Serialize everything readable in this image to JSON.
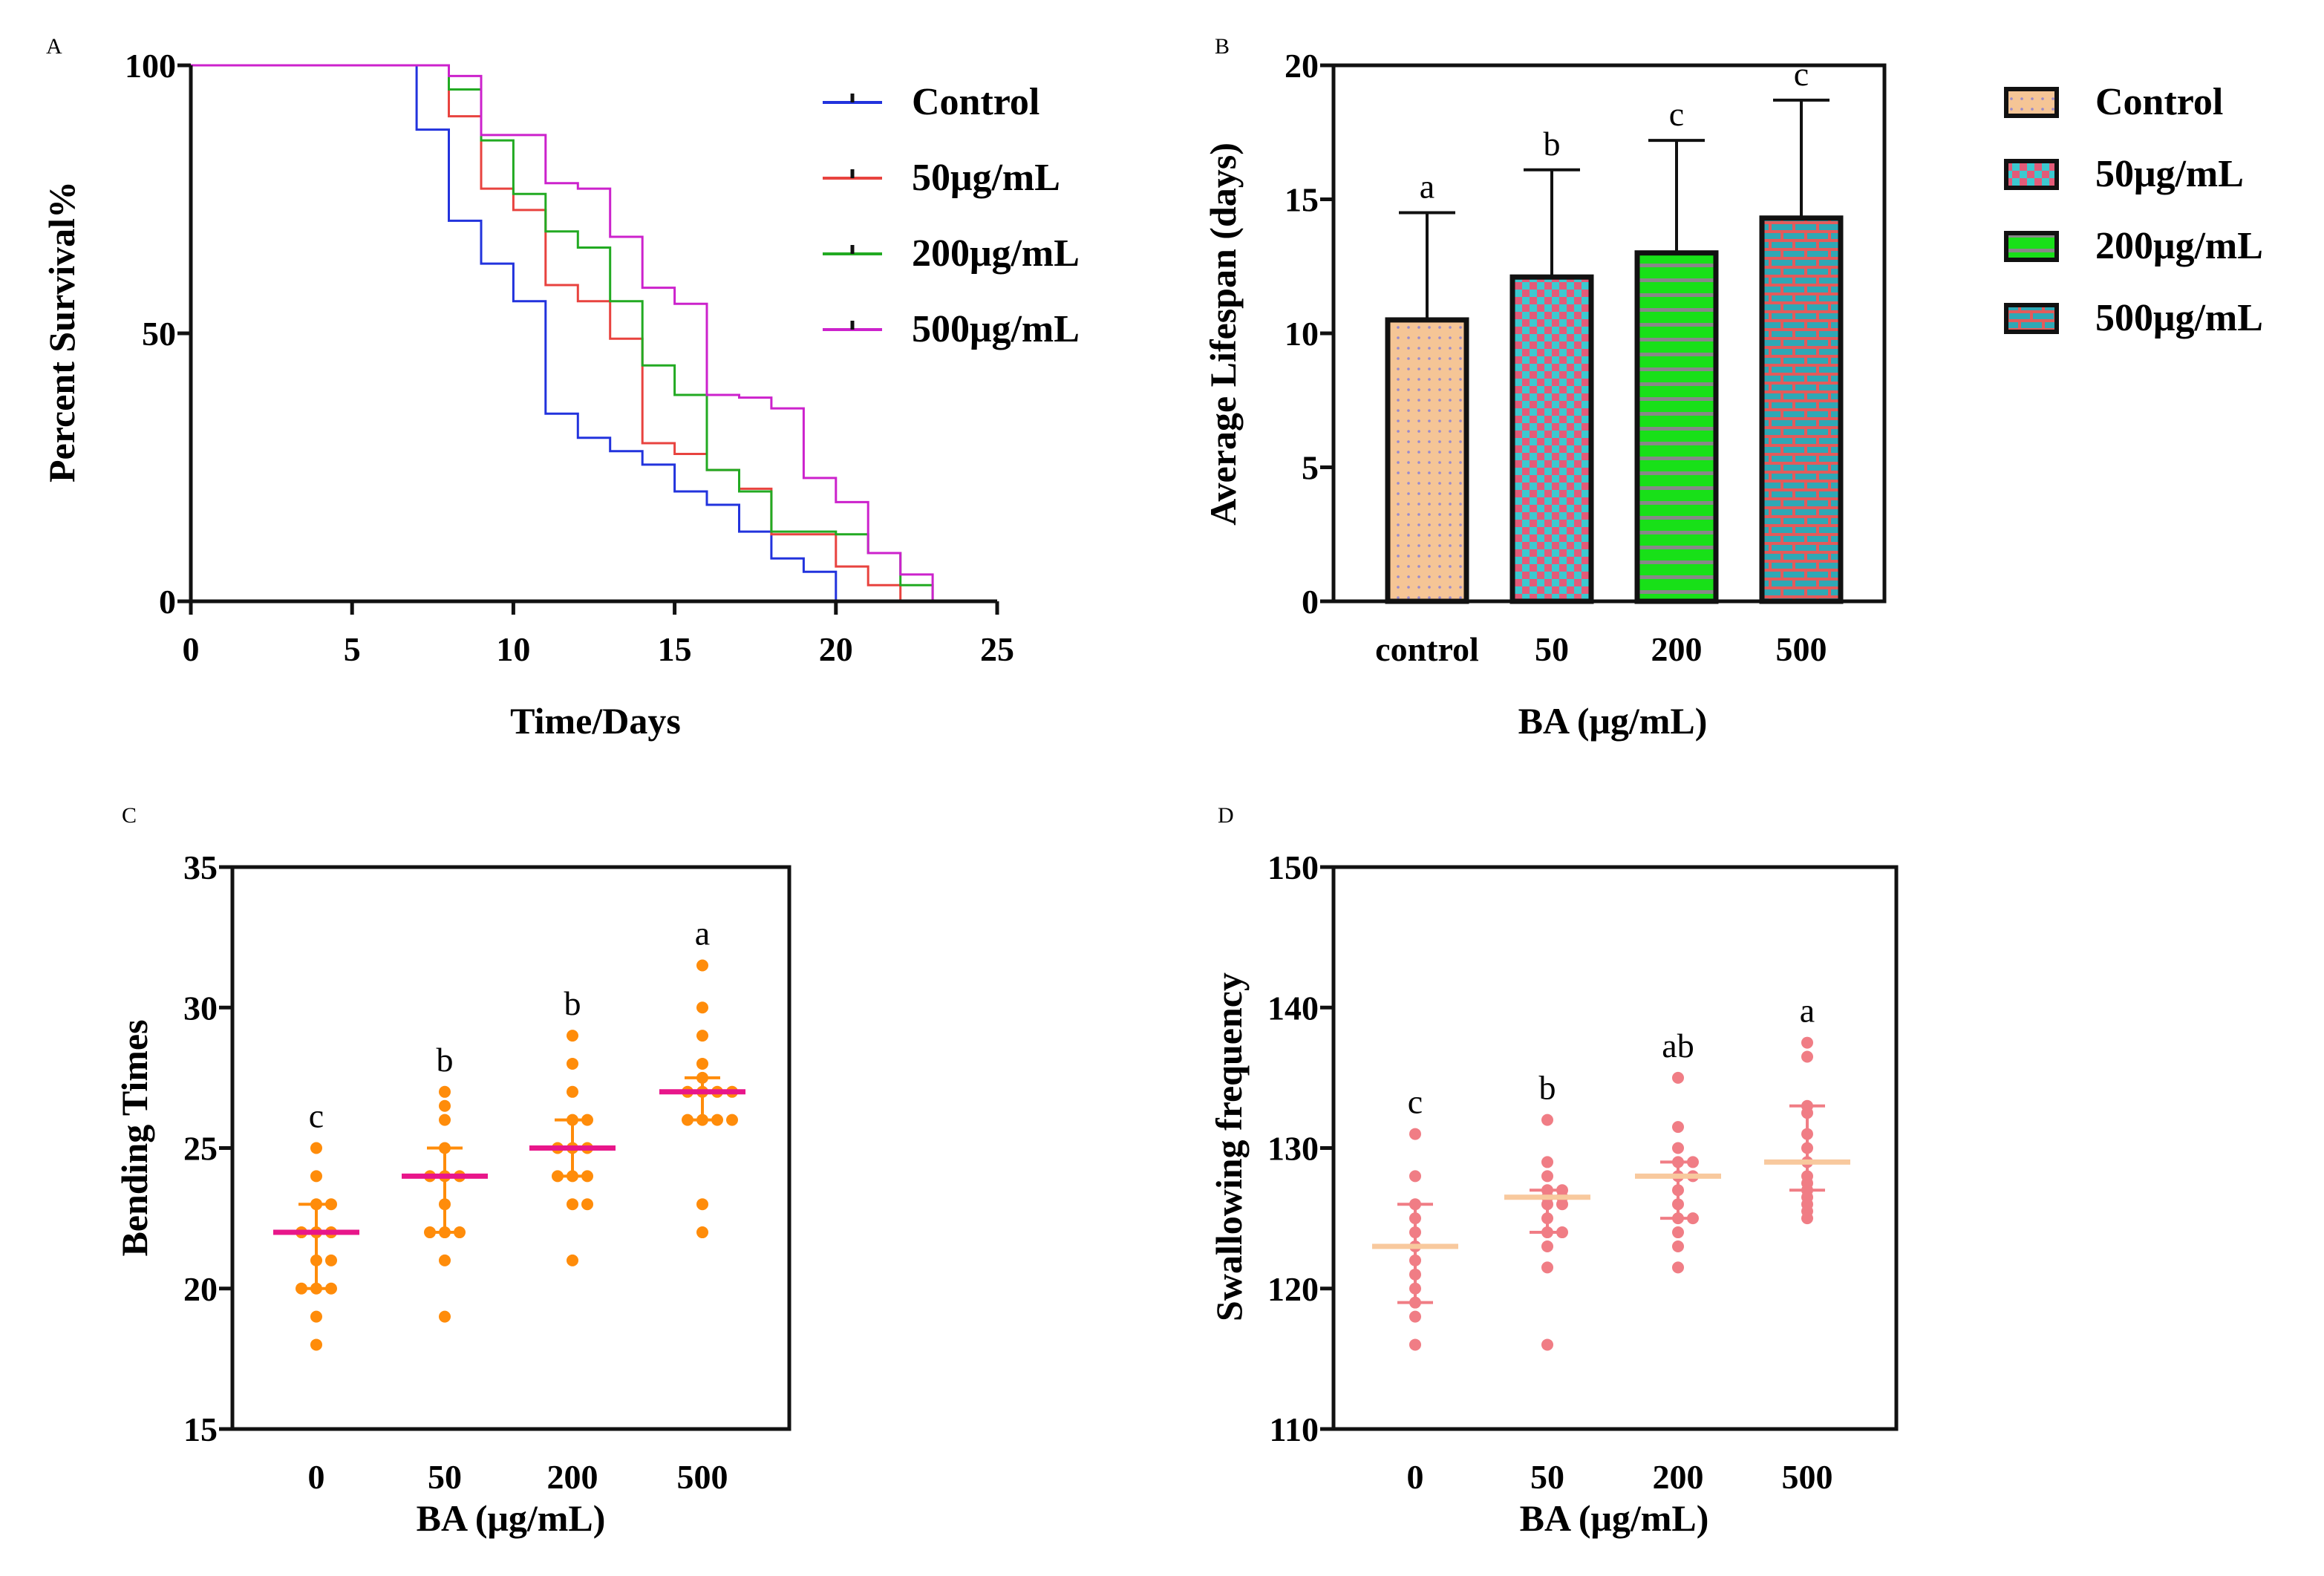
{
  "chart_data": [
    {
      "panel": "A",
      "type": "line",
      "subtype": "kaplan-meier-step",
      "title": "",
      "xlabel": "Time/Days",
      "ylabel": "Percent Survival%",
      "xlim": [
        0,
        25
      ],
      "ylim": [
        0,
        100
      ],
      "xticks": [
        0,
        5,
        10,
        15,
        20,
        25
      ],
      "yticks": [
        0,
        50,
        100
      ],
      "legend_position": "right",
      "series": [
        {
          "name": "Control",
          "color": "#2233dd",
          "points": [
            [
              0,
              100
            ],
            [
              7,
              100
            ],
            [
              7,
              88
            ],
            [
              8,
              88
            ],
            [
              8,
              71
            ],
            [
              9,
              71
            ],
            [
              9,
              63
            ],
            [
              10,
              63
            ],
            [
              10,
              56
            ],
            [
              11,
              56
            ],
            [
              11,
              35
            ],
            [
              12,
              35
            ],
            [
              12,
              30.5
            ],
            [
              13,
              30.5
            ],
            [
              13,
              28
            ],
            [
              14,
              28
            ],
            [
              14,
              25.5
            ],
            [
              15,
              25.5
            ],
            [
              15,
              20.5
            ],
            [
              16,
              20.5
            ],
            [
              16,
              18
            ],
            [
              17,
              18
            ],
            [
              17,
              13
            ],
            [
              18,
              13
            ],
            [
              18,
              8
            ],
            [
              19,
              8
            ],
            [
              19,
              5.5
            ],
            [
              20,
              5.5
            ],
            [
              20,
              0
            ]
          ]
        },
        {
          "name": "50μg/mL",
          "color": "#e8433f",
          "points": [
            [
              0,
              100
            ],
            [
              8,
              100
            ],
            [
              8,
              90.5
            ],
            [
              9,
              90.5
            ],
            [
              9,
              77
            ],
            [
              10,
              77
            ],
            [
              10,
              73
            ],
            [
              11,
              73
            ],
            [
              11,
              59
            ],
            [
              12,
              59
            ],
            [
              12,
              56
            ],
            [
              13,
              56
            ],
            [
              13,
              49
            ],
            [
              14,
              49
            ],
            [
              14,
              29.5
            ],
            [
              15,
              29.5
            ],
            [
              15,
              27.5
            ],
            [
              16,
              27.5
            ],
            [
              16,
              24.5
            ],
            [
              17,
              24.5
            ],
            [
              17,
              21
            ],
            [
              18,
              21
            ],
            [
              18,
              12.5
            ],
            [
              20,
              12.5
            ],
            [
              20,
              6.5
            ],
            [
              21,
              6.5
            ],
            [
              21,
              3
            ],
            [
              22,
              3
            ],
            [
              22,
              0
            ]
          ]
        },
        {
          "name": "200μg/mL",
          "color": "#22aa22",
          "points": [
            [
              0,
              100
            ],
            [
              8,
              100
            ],
            [
              8,
              95.5
            ],
            [
              9,
              95.5
            ],
            [
              9,
              86
            ],
            [
              10,
              86
            ],
            [
              10,
              76
            ],
            [
              11,
              76
            ],
            [
              11,
              69
            ],
            [
              12,
              69
            ],
            [
              12,
              66
            ],
            [
              13,
              66
            ],
            [
              13,
              56
            ],
            [
              14,
              56
            ],
            [
              14,
              44
            ],
            [
              15,
              44
            ],
            [
              15,
              38.5
            ],
            [
              16,
              38.5
            ],
            [
              16,
              24.5
            ],
            [
              17,
              24.5
            ],
            [
              17,
              20.5
            ],
            [
              18,
              20.5
            ],
            [
              18,
              13
            ],
            [
              20,
              13
            ],
            [
              20,
              12.5
            ],
            [
              21,
              12.5
            ],
            [
              21,
              9
            ],
            [
              22,
              9
            ],
            [
              22,
              3
            ],
            [
              23,
              3
            ],
            [
              23,
              0
            ]
          ]
        },
        {
          "name": "500μg/mL",
          "color": "#cc22cc",
          "points": [
            [
              0,
              100
            ],
            [
              8,
              100
            ],
            [
              8,
              98
            ],
            [
              9,
              98
            ],
            [
              9,
              87
            ],
            [
              11,
              87
            ],
            [
              11,
              78
            ],
            [
              12,
              78
            ],
            [
              12,
              77
            ],
            [
              13,
              77
            ],
            [
              13,
              68
            ],
            [
              14,
              68
            ],
            [
              14,
              58.5
            ],
            [
              15,
              58.5
            ],
            [
              15,
              55.5
            ],
            [
              16,
              55.5
            ],
            [
              16,
              38.5
            ],
            [
              17,
              38.5
            ],
            [
              17,
              38
            ],
            [
              18,
              38
            ],
            [
              18,
              36
            ],
            [
              19,
              36
            ],
            [
              19,
              23
            ],
            [
              20,
              23
            ],
            [
              20,
              18.5
            ],
            [
              21,
              18.5
            ],
            [
              21,
              9
            ],
            [
              22,
              9
            ],
            [
              22,
              5
            ],
            [
              23,
              5
            ],
            [
              23,
              0
            ]
          ]
        }
      ]
    },
    {
      "panel": "B",
      "type": "bar",
      "title": "",
      "xlabel": "BA (μg/mL)",
      "ylabel": "Average Lifespan (days)",
      "ylim": [
        0,
        20
      ],
      "yticks": [
        0,
        5,
        10,
        15,
        20
      ],
      "categories": [
        "control",
        "50",
        "200",
        "500"
      ],
      "values": [
        10.5,
        12.1,
        13.0,
        14.3
      ],
      "errors": [
        4.0,
        4.0,
        4.2,
        4.4
      ],
      "significance": [
        "a",
        "b",
        "c",
        "c"
      ],
      "legend": [
        "Control",
        "50μg/mL",
        "200μg/mL",
        "500μg/mL"
      ],
      "legend_position": "right",
      "colors": [
        "#f5c596",
        "#3cc9d0",
        "#18e018",
        "#2fa8b5"
      ],
      "pattern_colors": [
        "#9a8acc",
        "#e35b78",
        "#888888",
        "#e35b5b"
      ]
    },
    {
      "panel": "C",
      "type": "scatter",
      "subtype": "dot-plot-median-iqr",
      "title": "",
      "xlabel": "BA (μg/mL)",
      "ylabel": "Bending Times",
      "ylim": [
        15,
        35
      ],
      "yticks": [
        15,
        20,
        25,
        30,
        35
      ],
      "categories": [
        "0",
        "50",
        "200",
        "500"
      ],
      "point_color": "#ff8c0a",
      "median_color": "#e8168a",
      "whisker_color": "#ff8c0a",
      "groups": [
        {
          "values": [
            25,
            24,
            23,
            23,
            22,
            22,
            22,
            21,
            21,
            20,
            20,
            20,
            19,
            18
          ],
          "median": 22,
          "q1": 20,
          "q3": 23,
          "label": "c"
        },
        {
          "values": [
            27,
            26.5,
            26,
            25,
            24,
            24,
            24,
            23,
            22,
            22,
            22,
            21,
            19
          ],
          "median": 24,
          "q1": 22,
          "q3": 25,
          "label": "b"
        },
        {
          "values": [
            29,
            28,
            27,
            26,
            26,
            25,
            25,
            25,
            24,
            24,
            24,
            23,
            23,
            21
          ],
          "median": 25,
          "q1": 24,
          "q3": 26,
          "label": "b"
        },
        {
          "values": [
            31.5,
            30,
            29,
            28,
            27.5,
            27,
            27,
            27,
            27,
            26,
            26,
            26,
            26,
            23,
            22
          ],
          "median": 27,
          "q1": 26,
          "q3": 27.5,
          "label": "a"
        }
      ]
    },
    {
      "panel": "D",
      "type": "scatter",
      "subtype": "dot-plot-median-iqr",
      "title": "",
      "xlabel": "BA (μg/mL)",
      "ylabel": "Swallowing frequency",
      "ylim": [
        110,
        150
      ],
      "yticks": [
        110,
        120,
        130,
        140,
        150
      ],
      "categories": [
        "0",
        "50",
        "200",
        "500"
      ],
      "point_color": "#f07d85",
      "median_color": "#f8c99e",
      "whisker_color": "#f07d85",
      "groups": [
        {
          "values": [
            131,
            128,
            126,
            125,
            124,
            123,
            122,
            121,
            120,
            119,
            118,
            116
          ],
          "median": 123,
          "q1": 119,
          "q3": 126,
          "label": "c"
        },
        {
          "values": [
            132,
            129,
            128,
            127,
            127,
            126.5,
            126.5,
            126,
            126,
            125,
            124,
            124,
            123,
            121.5,
            116
          ],
          "median": 126.5,
          "q1": 124,
          "q3": 127,
          "label": "b"
        },
        {
          "values": [
            135,
            131.5,
            130,
            129,
            129,
            128,
            128,
            127,
            126,
            125,
            125,
            124,
            123,
            121.5
          ],
          "median": 128,
          "q1": 125,
          "q3": 129,
          "label": "ab"
        },
        {
          "values": [
            137.5,
            136.5,
            133,
            132.5,
            131,
            130,
            129,
            128,
            127.5,
            127,
            126.5,
            126,
            125.5,
            125
          ],
          "median": 129,
          "q1": 127,
          "q3": 133,
          "label": "a"
        }
      ]
    }
  ],
  "panel_letters": {
    "a": "A",
    "b": "B",
    "c": "C",
    "d": "D"
  }
}
